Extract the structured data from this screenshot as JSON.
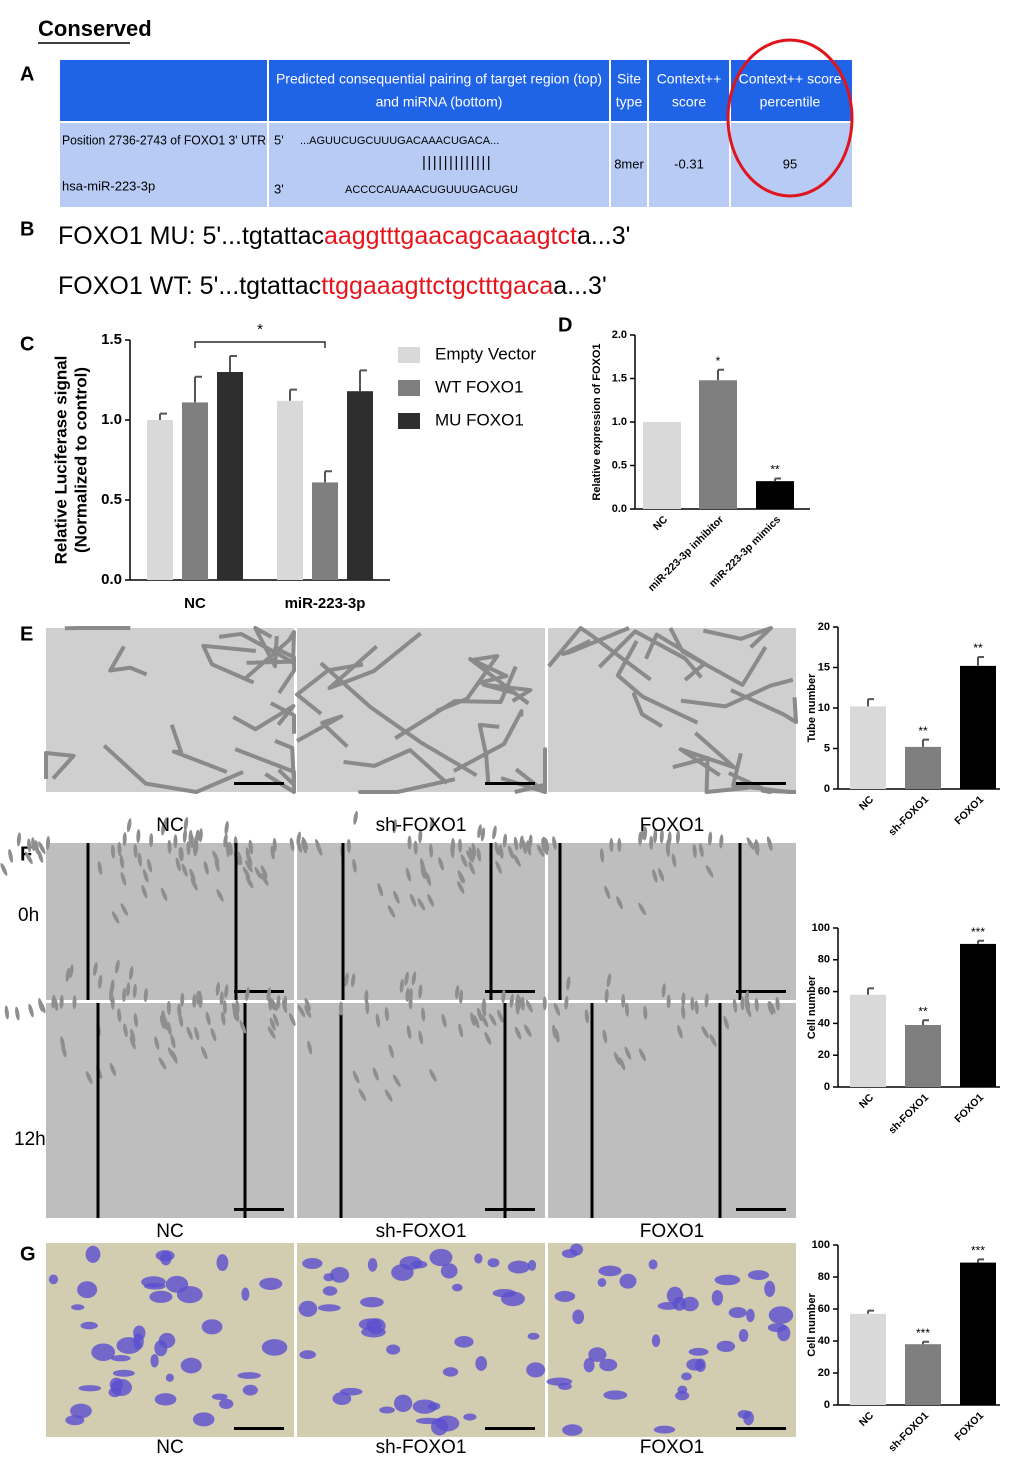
{
  "heading": "Conserved",
  "panel_labels": [
    "A",
    "B",
    "C",
    "D",
    "E",
    "F",
    "G"
  ],
  "table": {
    "headers": [
      [
        "Predicted consequential pairing of target region (top)",
        "and miRNA (bottom)"
      ],
      [
        "Site",
        "type"
      ],
      [
        "Context++",
        "score"
      ],
      [
        "Context++ score",
        "percentile"
      ]
    ],
    "row": {
      "position": "Position 2736-2743 of FOXO1 3' UTR",
      "mirna": "hsa-miR-223-3p",
      "top_end": "5'",
      "top_seq": "...AGUUCUGCUUUGACAAACUGACA...",
      "pairing": "|||||||||||||",
      "bottom_end": "3'",
      "bottom_seq": "ACCCCAUAAACUGUUUGACUGU",
      "site_type": "8mer",
      "score": "-0.31",
      "percentile": "95"
    }
  },
  "sequences": [
    {
      "prefix": "FOXO1 MU: 5'...tgtattac",
      "highlight": "aaggtttgaacagcaaagtct",
      "suffix": "a...3'"
    },
    {
      "prefix": "FOXO1 WT: 5'...tgtattac",
      "highlight": "ttggaaagttctgctttgaca",
      "suffix": "a...3'"
    }
  ],
  "image_captions": [
    "NC",
    "sh-FOXO1",
    "FOXO1",
    "NC",
    "sh-FOXO1",
    "FOXO1",
    "NC",
    "sh-FOXO1",
    "FOXO1"
  ],
  "time_labels": [
    "0h",
    "12h"
  ],
  "chart_data": [
    {
      "type": "grouped-bar",
      "ylabel": [
        "Relative Luciferase signal",
        "(Normalized to control)"
      ],
      "categories": [
        "NC",
        "miR-223-3p"
      ],
      "series": [
        {
          "name": "Empty Vector",
          "color": "#d9d9d9",
          "values": [
            1.0,
            1.12
          ],
          "errors": [
            0.04,
            0.07
          ]
        },
        {
          "name": "WT FOXO1",
          "color": "#7f7f7f",
          "values": [
            1.11,
            0.61
          ],
          "errors": [
            0.16,
            0.07
          ]
        },
        {
          "name": "MU FOXO1",
          "color": "#2e2e2e",
          "values": [
            1.3,
            1.18
          ],
          "errors": [
            0.1,
            0.13
          ]
        }
      ],
      "ylim": [
        0,
        1.5
      ],
      "yticks": [
        {
          "value": 0,
          "label": "0.0"
        },
        {
          "value": 0.5,
          "label": "0.5"
        },
        {
          "value": 1,
          "label": "1.0"
        },
        {
          "value": 1.5,
          "label": "1.5"
        }
      ],
      "annotation": "*"
    },
    {
      "type": "bar",
      "ylabel": "Relative expression of FOXO1",
      "categories": [
        "NC",
        "miR-223-3p inhibitor",
        "miR-223-3p mimics"
      ],
      "values": [
        1.0,
        1.48,
        0.32
      ],
      "errors": [
        null,
        0.12,
        0.03
      ],
      "colors": [
        "#d9d9d9",
        "#7f7f7f",
        "#000000"
      ],
      "significance": [
        null,
        "*",
        "**"
      ],
      "ylim": [
        0,
        2
      ],
      "yticks": [
        {
          "value": 0,
          "label": "0.0"
        },
        {
          "value": 0.5,
          "label": "0.5"
        },
        {
          "value": 1,
          "label": "1.0"
        },
        {
          "value": 1.5,
          "label": "1.5"
        },
        {
          "value": 2,
          "label": "2.0"
        }
      ]
    },
    {
      "type": "bar",
      "ylabel": "Tube number",
      "categories": [
        "NC",
        "sh-FOXO1",
        "FOXO1"
      ],
      "values": [
        10.2,
        5.2,
        15.2
      ],
      "errors": [
        0.9,
        0.9,
        1.1
      ],
      "colors": [
        "#d9d9d9",
        "#7f7f7f",
        "#000000"
      ],
      "significance": [
        null,
        "**",
        "**"
      ],
      "ylim": [
        0,
        20
      ],
      "yticks": [
        0,
        5,
        10,
        15,
        20
      ]
    },
    {
      "type": "bar",
      "ylabel": "Cell number",
      "categories": [
        "NC",
        "sh-FOXO1",
        "FOXO1"
      ],
      "values": [
        58,
        39,
        90
      ],
      "errors": [
        4,
        3,
        2
      ],
      "colors": [
        "#d9d9d9",
        "#7f7f7f",
        "#000000"
      ],
      "significance": [
        null,
        "**",
        "***"
      ],
      "ylim": [
        0,
        100
      ],
      "yticks": [
        0,
        20,
        40,
        60,
        80,
        100
      ]
    },
    {
      "type": "bar",
      "ylabel": "Cell number",
      "categories": [
        "NC",
        "sh-FOXO1",
        "FOXO1"
      ],
      "values": [
        57,
        38,
        89
      ],
      "errors": [
        2,
        1.5,
        2
      ],
      "colors": [
        "#d9d9d9",
        "#7f7f7f",
        "#000000"
      ],
      "significance": [
        null,
        "***",
        "***"
      ],
      "ylim": [
        0,
        100
      ],
      "yticks": [
        0,
        20,
        40,
        60,
        80,
        100
      ]
    }
  ]
}
